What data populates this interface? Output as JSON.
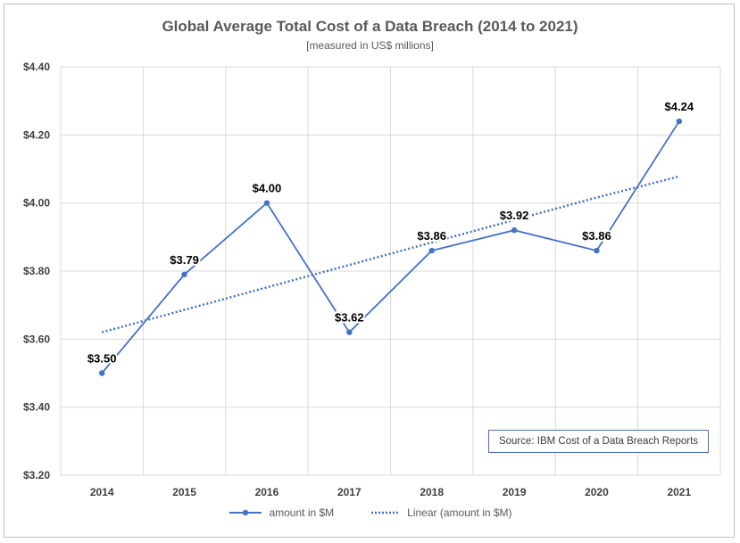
{
  "chart_data": {
    "type": "line",
    "title": "Global Average Total Cost of a Data Breach (2014 to 2021)",
    "subtitle": "[measured in US$ millions]",
    "categories": [
      "2014",
      "2015",
      "2016",
      "2017",
      "2018",
      "2019",
      "2020",
      "2021"
    ],
    "series": [
      {
        "name": "amount in $M",
        "values": [
          3.5,
          3.79,
          4.0,
          3.62,
          3.86,
          3.92,
          3.86,
          4.24
        ],
        "data_labels": [
          "$3.50",
          "$3.79",
          "$4.00",
          "$3.62",
          "$3.86",
          "$3.92",
          "$3.86",
          "$4.24"
        ],
        "color": "#4472c4"
      },
      {
        "name": "Linear (amount in $M)",
        "values": [
          3.62,
          3.686,
          3.752,
          3.818,
          3.884,
          3.95,
          4.016,
          4.078
        ],
        "style": "dotted",
        "color": "#4472c4"
      }
    ],
    "y_ticks": [
      3.2,
      3.4,
      3.6,
      3.8,
      4.0,
      4.2,
      4.4
    ],
    "y_tick_labels": [
      "$3.20",
      "$3.40",
      "$3.60",
      "$3.80",
      "$4.00",
      "$4.20",
      "$4.40"
    ],
    "ylim": [
      3.2,
      4.4
    ],
    "grid": true,
    "legend_position": "bottom",
    "annotation": "Source: IBM Cost of a Data Breach Reports"
  }
}
